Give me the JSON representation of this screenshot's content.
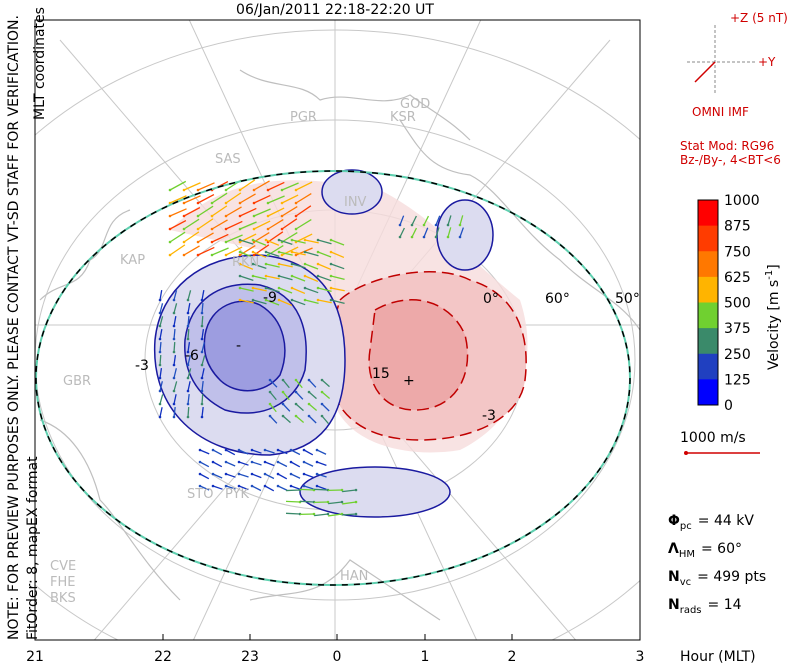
{
  "title": "06/Jan/2011 22:18-22:20 UT",
  "side_note": "NOTE: FOR PREVIEW PURPOSES ONLY. PLEASE CONTACT VT-SD STAFF FOR VERIFICATION.",
  "coord_note": "MLT coordinates",
  "fit_note": "FitOrder: 8, mapEX format",
  "imf": {
    "z_label": "+Z (5 nT)",
    "y_label": "+Y",
    "caption": "OMNI IMF"
  },
  "model": [
    "Stat Mod: RG96",
    "Bz-/By-, 4<BT<6"
  ],
  "colorbar": {
    "ticks": [
      "1000",
      "875",
      "750",
      "625",
      "500",
      "375",
      "250",
      "125",
      "0"
    ],
    "label": "Velocity [m s",
    "label_sup": "-1",
    "label_end": "]"
  },
  "vector_scale": "1000 m/s",
  "stats": [
    {
      "symbol": "Φ",
      "sub": "pc",
      "value": "= 44 kV"
    },
    {
      "symbol": "Λ",
      "sub": "HM",
      "value": "= 60°"
    },
    {
      "symbol": "N",
      "sub": "vc",
      "value": "= 499 pts"
    },
    {
      "symbol": "N",
      "sub": "rads",
      "value": "= 14"
    }
  ],
  "x_ticks": [
    "21",
    "22",
    "23",
    "0",
    "1",
    "2",
    "3"
  ],
  "x_label": "Hour (MLT)",
  "lat_labels": [
    "0°",
    "60°",
    "50°"
  ],
  "contour_labels": [
    "-9",
    "-6",
    "-3",
    "15",
    "-3",
    "-",
    "+"
  ],
  "stations": [
    "PGR",
    "KSR",
    "GOD",
    "SAS",
    "INV",
    "KAP",
    "RKN",
    "GBR",
    "STO",
    "PYK",
    "HAN",
    "CVE",
    "FHE",
    "BKS"
  ]
}
